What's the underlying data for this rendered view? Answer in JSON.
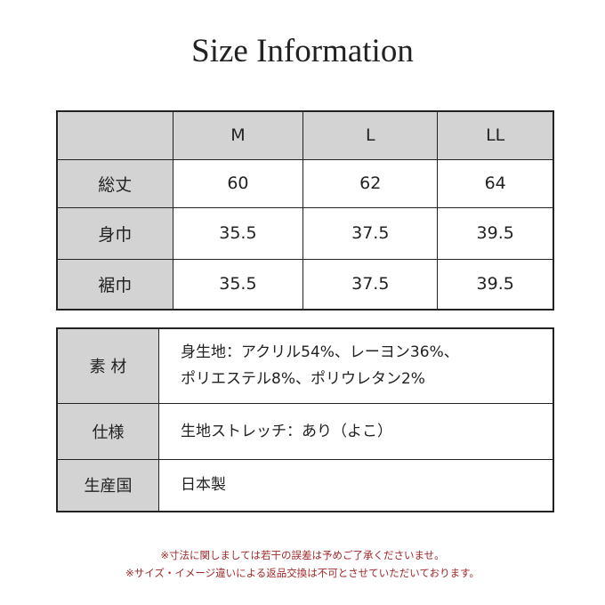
{
  "title": "Size Information",
  "size_table": {
    "headers": [
      "",
      "M",
      "L",
      "LL"
    ],
    "rows": [
      {
        "label": "総丈",
        "values": [
          "60",
          "62",
          "64"
        ]
      },
      {
        "label": "身巾",
        "values": [
          "35.5",
          "37.5",
          "39.5"
        ]
      },
      {
        "label": "裾巾",
        "values": [
          "35.5",
          "37.5",
          "39.5"
        ]
      }
    ]
  },
  "spec_table": [
    {
      "label": "素 材",
      "lines": [
        "身生地：アクリル54%、レーヨン36%、",
        "ポリエステル8%、ポリウレタン2%"
      ]
    },
    {
      "label": "仕様",
      "lines": [
        "生地ストレッチ：あり（よこ）"
      ]
    },
    {
      "label": "生産国",
      "lines": [
        "日本製"
      ]
    }
  ],
  "notes": [
    "※寸法に関しましては若干の誤差は予めご了承くださいませ。",
    "※サイズ・イメージ違いによる返品交換は不可とさせていただいております。"
  ],
  "colors": {
    "header_bg": "#d3d3d3",
    "note_text": "#a0282a"
  }
}
